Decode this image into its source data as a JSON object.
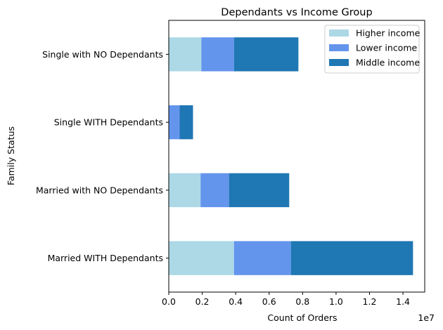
{
  "chart_data": {
    "type": "bar",
    "orientation": "horizontal",
    "stacked": true,
    "title": "Dependants vs Income Group",
    "xlabel": "Count of Orders",
    "ylabel": "Family Status",
    "x_offset_label": "1e7",
    "xlim": [
      0,
      1.53
    ],
    "x_ticks": [
      "0.0",
      "0.2",
      "0.4",
      "0.6",
      "0.8",
      "1.0",
      "1.2",
      "1.4"
    ],
    "x_tick_values": [
      0,
      0.2,
      0.4,
      0.6,
      0.8,
      1.0,
      1.2,
      1.4
    ],
    "categories": [
      "Married WITH Dependants",
      "Married with NO Dependants",
      "Single WITH Dependants",
      "Single with NO Dependants"
    ],
    "series": [
      {
        "name": "Higher income",
        "color": "#add8e6",
        "values": [
          0.39,
          0.19,
          0.0,
          0.195
        ]
      },
      {
        "name": "Lower income",
        "color": "#6495ed",
        "values": [
          0.34,
          0.17,
          0.065,
          0.195
        ]
      },
      {
        "name": "Middle income",
        "color": "#1f77b4",
        "values": [
          0.73,
          0.36,
          0.08,
          0.385
        ]
      }
    ],
    "grid": false,
    "legend_position": "top-right"
  }
}
